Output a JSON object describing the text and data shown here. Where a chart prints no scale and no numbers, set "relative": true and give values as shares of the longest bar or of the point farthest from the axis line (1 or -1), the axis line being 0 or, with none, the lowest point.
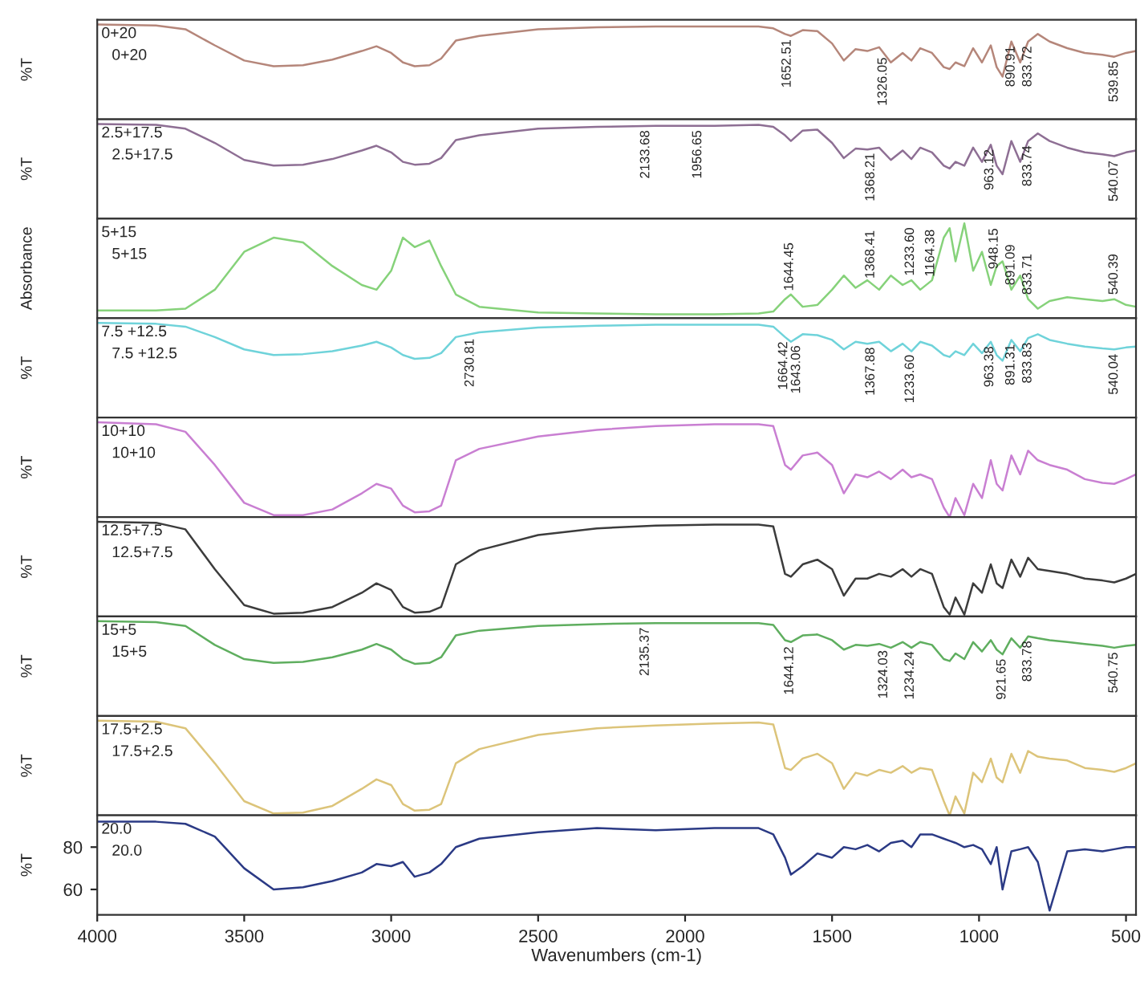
{
  "chart_data": [
    {
      "type": "line",
      "relative": true,
      "tick_labels": false,
      "xlim": [
        4000,
        466
      ],
      "ylabel": "%T",
      "annotations": [
        "0+20",
        "0+20",
        {
          "text": "1652.51",
          "x": 1652.51,
          "y": 0.89
        },
        {
          "text": "1326.05",
          "x": 1326.05,
          "y": 0.7
        },
        {
          "text": "890.91",
          "x": 890.91,
          "y": 0.82
        },
        {
          "text": "833.72",
          "x": 833.72,
          "y": 0.82
        },
        {
          "text": "539.85",
          "x": 539.85,
          "y": 0.66
        }
      ],
      "xticks": [
        4000,
        3500,
        3000,
        2500,
        2000,
        1500,
        1000,
        500
      ],
      "x": [
        4000,
        3800,
        3700,
        3600,
        3500,
        3400,
        3300,
        3200,
        3100,
        3050,
        3000,
        2960,
        2920,
        2870,
        2830,
        2780,
        2700,
        2500,
        2300,
        2100,
        1900,
        1750,
        1700,
        1660,
        1640,
        1600,
        1550,
        1500,
        1460,
        1420,
        1380,
        1340,
        1300,
        1260,
        1230,
        1200,
        1160,
        1120,
        1100,
        1080,
        1050,
        1020,
        990,
        960,
        940,
        920,
        890,
        860,
        833,
        800,
        760,
        700,
        640,
        580,
        540,
        500,
        466
      ],
      "series": [
        {
          "color": "#b5867a",
          "values": [
            1,
            0.99,
            0.95,
            0.78,
            0.62,
            0.56,
            0.57,
            0.63,
            0.72,
            0.77,
            0.7,
            0.6,
            0.56,
            0.57,
            0.64,
            0.83,
            0.88,
            0.95,
            0.97,
            0.98,
            0.98,
            0.98,
            0.96,
            0.9,
            0.88,
            0.94,
            0.93,
            0.8,
            0.62,
            0.74,
            0.72,
            0.76,
            0.6,
            0.7,
            0.62,
            0.75,
            0.7,
            0.55,
            0.53,
            0.6,
            0.56,
            0.75,
            0.6,
            0.78,
            0.55,
            0.45,
            0.82,
            0.6,
            0.82,
            0.9,
            0.82,
            0.75,
            0.7,
            0.68,
            0.66,
            0.7,
            0.72
          ]
        }
      ]
    },
    {
      "type": "line",
      "relative": true,
      "tick_labels": false,
      "xlim": [
        4000,
        466
      ],
      "ylabel": "%T",
      "annotations": [
        "2.5+17.5",
        "2.5+17.5",
        {
          "text": "2133.68",
          "x": 2133.68,
          "y": 0.98
        },
        {
          "text": "1956.65",
          "x": 1956.65,
          "y": 0.98
        },
        {
          "text": "1368.21",
          "x": 1368.21,
          "y": 0.74
        },
        {
          "text": "963.12",
          "x": 963.12,
          "y": 0.78
        },
        {
          "text": "833.74",
          "x": 833.74,
          "y": 0.82
        },
        {
          "text": "540.07",
          "x": 540.07,
          "y": 0.66
        }
      ],
      "xticks": [
        4000,
        3500,
        3000,
        2500,
        2000,
        1500,
        1000,
        500
      ],
      "x": [
        4000,
        3800,
        3700,
        3600,
        3500,
        3400,
        3300,
        3200,
        3100,
        3050,
        3000,
        2960,
        2920,
        2870,
        2830,
        2780,
        2700,
        2500,
        2300,
        2100,
        1900,
        1750,
        1700,
        1660,
        1640,
        1600,
        1550,
        1500,
        1460,
        1420,
        1380,
        1340,
        1300,
        1260,
        1230,
        1200,
        1160,
        1120,
        1100,
        1080,
        1050,
        1020,
        990,
        960,
        940,
        920,
        890,
        860,
        833,
        800,
        760,
        700,
        640,
        580,
        540,
        500,
        466
      ],
      "series": [
        {
          "color": "#8e6f94",
          "values": [
            1,
            0.99,
            0.95,
            0.8,
            0.62,
            0.56,
            0.57,
            0.63,
            0.72,
            0.77,
            0.7,
            0.6,
            0.57,
            0.58,
            0.64,
            0.83,
            0.88,
            0.95,
            0.97,
            0.98,
            0.98,
            0.99,
            0.97,
            0.88,
            0.82,
            0.93,
            0.94,
            0.8,
            0.64,
            0.74,
            0.73,
            0.75,
            0.62,
            0.72,
            0.63,
            0.75,
            0.7,
            0.56,
            0.53,
            0.6,
            0.56,
            0.75,
            0.6,
            0.78,
            0.56,
            0.47,
            0.82,
            0.6,
            0.82,
            0.9,
            0.82,
            0.75,
            0.7,
            0.68,
            0.66,
            0.7,
            0.72
          ]
        }
      ]
    },
    {
      "type": "line",
      "relative": true,
      "tick_labels": false,
      "xlim": [
        4000,
        466
      ],
      "ylabel": "Absorbance",
      "annotations": [
        "5+15",
        "5+15",
        {
          "text": "1644.45",
          "x": 1644.45,
          "y": 0.24
        },
        {
          "text": "1368.41",
          "x": 1368.41,
          "y": 0.37
        },
        {
          "text": "1233.60",
          "x": 1233.6,
          "y": 0.4
        },
        {
          "text": "1164.38",
          "x": 1164.38,
          "y": 0.39
        },
        {
          "text": "948.15",
          "x": 948.15,
          "y": 0.47
        },
        {
          "text": "891.09",
          "x": 891.09,
          "y": 0.3
        },
        {
          "text": "833.71",
          "x": 833.71,
          "y": 0.2
        },
        {
          "text": "540.39",
          "x": 540.39,
          "y": 0.2
        }
      ],
      "xticks": [
        4000,
        3500,
        3000,
        2500,
        2000,
        1500,
        1000,
        500
      ],
      "x": [
        4000,
        3800,
        3700,
        3600,
        3500,
        3400,
        3300,
        3200,
        3100,
        3050,
        3000,
        2960,
        2920,
        2870,
        2830,
        2780,
        2700,
        2500,
        2300,
        2100,
        1900,
        1750,
        1700,
        1660,
        1640,
        1600,
        1550,
        1500,
        1460,
        1420,
        1380,
        1340,
        1300,
        1260,
        1230,
        1200,
        1160,
        1120,
        1100,
        1080,
        1050,
        1020,
        990,
        960,
        940,
        920,
        890,
        860,
        833,
        800,
        760,
        700,
        640,
        580,
        540,
        500,
        466
      ],
      "series": [
        {
          "color": "#86d27a",
          "values": [
            0.08,
            0.08,
            0.1,
            0.3,
            0.7,
            0.85,
            0.8,
            0.55,
            0.35,
            0.3,
            0.5,
            0.85,
            0.75,
            0.82,
            0.55,
            0.25,
            0.12,
            0.06,
            0.05,
            0.04,
            0.04,
            0.05,
            0.07,
            0.2,
            0.25,
            0.12,
            0.14,
            0.3,
            0.45,
            0.32,
            0.4,
            0.3,
            0.45,
            0.35,
            0.4,
            0.3,
            0.4,
            0.85,
            0.95,
            0.6,
            1,
            0.5,
            0.7,
            0.35,
            0.55,
            0.6,
            0.3,
            0.45,
            0.2,
            0.1,
            0.18,
            0.22,
            0.2,
            0.18,
            0.2,
            0.14,
            0.12
          ]
        }
      ]
    },
    {
      "type": "line",
      "relative": true,
      "tick_labels": false,
      "xlim": [
        4000,
        466
      ],
      "ylabel": "%T",
      "annotations": [
        "7.5 +12.5",
        "7.5 +12.5",
        {
          "text": "2730.81",
          "x": 2730.81,
          "y": 0.88
        },
        {
          "text": "1664.42",
          "x": 1664.42,
          "y": 0.85
        },
        {
          "text": "1643.06",
          "x": 1643.06,
          "y": 0.81
        },
        {
          "text": "1367.88",
          "x": 1367.88,
          "y": 0.79
        },
        {
          "text": "1233.60",
          "x": 1233.6,
          "y": 0.71
        },
        {
          "text": "963.38",
          "x": 963.38,
          "y": 0.8
        },
        {
          "text": "891.31",
          "x": 891.31,
          "y": 0.82
        },
        {
          "text": "833.83",
          "x": 833.83,
          "y": 0.84
        },
        {
          "text": "540.04",
          "x": 540.04,
          "y": 0.72
        }
      ],
      "xticks": [
        4000,
        3500,
        3000,
        2500,
        2000,
        1500,
        1000,
        500
      ],
      "x": [
        4000,
        3800,
        3700,
        3600,
        3500,
        3400,
        3300,
        3200,
        3100,
        3050,
        3000,
        2960,
        2920,
        2870,
        2830,
        2780,
        2700,
        2500,
        2300,
        2100,
        1900,
        1750,
        1700,
        1660,
        1640,
        1600,
        1550,
        1500,
        1460,
        1420,
        1380,
        1340,
        1300,
        1260,
        1230,
        1200,
        1160,
        1120,
        1100,
        1080,
        1050,
        1020,
        990,
        960,
        940,
        920,
        890,
        860,
        833,
        800,
        760,
        700,
        640,
        580,
        540,
        500,
        466
      ],
      "series": [
        {
          "color": "#6fd3da",
          "values": [
            1,
            0.99,
            0.96,
            0.85,
            0.72,
            0.66,
            0.67,
            0.7,
            0.76,
            0.8,
            0.74,
            0.66,
            0.62,
            0.63,
            0.68,
            0.85,
            0.9,
            0.95,
            0.97,
            0.98,
            0.98,
            0.98,
            0.96,
            0.85,
            0.8,
            0.88,
            0.87,
            0.82,
            0.72,
            0.8,
            0.78,
            0.8,
            0.7,
            0.78,
            0.7,
            0.8,
            0.76,
            0.66,
            0.64,
            0.7,
            0.66,
            0.78,
            0.68,
            0.8,
            0.66,
            0.6,
            0.82,
            0.7,
            0.84,
            0.88,
            0.82,
            0.78,
            0.75,
            0.73,
            0.72,
            0.74,
            0.75
          ]
        }
      ]
    },
    {
      "type": "line",
      "relative": true,
      "tick_labels": false,
      "xlim": [
        4000,
        466
      ],
      "ylabel": "%T",
      "annotations": [
        "10+10",
        "10+10"
      ],
      "xticks": [
        4000,
        3500,
        3000,
        2500,
        2000,
        1500,
        1000,
        500
      ],
      "x": [
        4000,
        3800,
        3700,
        3600,
        3500,
        3400,
        3300,
        3200,
        3100,
        3050,
        3000,
        2960,
        2920,
        2870,
        2830,
        2780,
        2700,
        2500,
        2300,
        2100,
        1900,
        1750,
        1700,
        1660,
        1640,
        1600,
        1550,
        1500,
        1460,
        1420,
        1380,
        1340,
        1300,
        1260,
        1230,
        1200,
        1160,
        1120,
        1100,
        1080,
        1050,
        1020,
        990,
        960,
        940,
        920,
        890,
        860,
        833,
        800,
        760,
        700,
        640,
        580,
        540,
        500,
        466
      ],
      "series": [
        {
          "color": "#c97fd2",
          "values": [
            1,
            0.98,
            0.9,
            0.55,
            0.15,
            0.02,
            0.02,
            0.08,
            0.25,
            0.35,
            0.3,
            0.12,
            0.05,
            0.06,
            0.12,
            0.6,
            0.72,
            0.85,
            0.92,
            0.96,
            0.98,
            0.98,
            0.96,
            0.55,
            0.5,
            0.65,
            0.68,
            0.55,
            0.25,
            0.45,
            0.42,
            0.48,
            0.4,
            0.5,
            0.42,
            0.45,
            0.4,
            0.1,
            0,
            0.2,
            0.02,
            0.35,
            0.2,
            0.6,
            0.35,
            0.28,
            0.65,
            0.45,
            0.7,
            0.6,
            0.55,
            0.5,
            0.4,
            0.36,
            0.35,
            0.4,
            0.45
          ]
        }
      ]
    },
    {
      "type": "line",
      "relative": true,
      "tick_labels": false,
      "xlim": [
        4000,
        466
      ],
      "ylabel": "%T",
      "annotations": [
        "12.5+7.5",
        "12.5+7.5"
      ],
      "xticks": [
        4000,
        3500,
        3000,
        2500,
        2000,
        1500,
        1000,
        500
      ],
      "x": [
        4000,
        3800,
        3700,
        3600,
        3500,
        3400,
        3300,
        3200,
        3100,
        3050,
        3000,
        2960,
        2920,
        2870,
        2830,
        2780,
        2700,
        2500,
        2300,
        2100,
        1900,
        1750,
        1700,
        1660,
        1640,
        1600,
        1550,
        1500,
        1460,
        1420,
        1380,
        1340,
        1300,
        1260,
        1230,
        1200,
        1160,
        1120,
        1100,
        1080,
        1050,
        1020,
        990,
        960,
        940,
        920,
        890,
        860,
        833,
        800,
        760,
        700,
        640,
        580,
        540,
        500,
        466
      ],
      "series": [
        {
          "color": "#3c3c3c",
          "values": [
            1,
            0.99,
            0.92,
            0.5,
            0.12,
            0.03,
            0.04,
            0.1,
            0.25,
            0.35,
            0.28,
            0.1,
            0.04,
            0.05,
            0.1,
            0.55,
            0.7,
            0.86,
            0.93,
            0.96,
            0.97,
            0.97,
            0.95,
            0.45,
            0.42,
            0.55,
            0.6,
            0.5,
            0.22,
            0.4,
            0.4,
            0.45,
            0.42,
            0.5,
            0.42,
            0.5,
            0.45,
            0.1,
            0.02,
            0.2,
            0.02,
            0.35,
            0.25,
            0.55,
            0.35,
            0.3,
            0.6,
            0.42,
            0.62,
            0.5,
            0.48,
            0.45,
            0.4,
            0.38,
            0.36,
            0.4,
            0.45
          ]
        }
      ]
    },
    {
      "type": "line",
      "relative": true,
      "tick_labels": false,
      "xlim": [
        4000,
        466
      ],
      "ylabel": "%T",
      "annotations": [
        "15+5",
        "15+5",
        {
          "text": "2135.37",
          "x": 2135.37,
          "y": 0.98
        },
        {
          "text": "1644.12",
          "x": 1644.12,
          "y": 0.78
        },
        {
          "text": "1234.24",
          "x": 1234.24,
          "y": 0.73
        },
        {
          "text": "1324.03",
          "x": 1324.03,
          "y": 0.74
        },
        {
          "text": "921.65",
          "x": 921.65,
          "y": 0.65
        },
        {
          "text": "833.78",
          "x": 833.78,
          "y": 0.84
        },
        {
          "text": "540.75",
          "x": 540.75,
          "y": 0.72
        }
      ],
      "xticks": [
        4000,
        3500,
        3000,
        2500,
        2000,
        1500,
        1000,
        500
      ],
      "x": [
        4000,
        3800,
        3700,
        3600,
        3500,
        3400,
        3300,
        3200,
        3100,
        3050,
        3000,
        2960,
        2920,
        2870,
        2830,
        2780,
        2700,
        2500,
        2300,
        2100,
        1900,
        1750,
        1700,
        1660,
        1640,
        1600,
        1550,
        1500,
        1460,
        1420,
        1380,
        1340,
        1300,
        1260,
        1230,
        1200,
        1160,
        1120,
        1100,
        1080,
        1050,
        1020,
        990,
        960,
        940,
        920,
        890,
        860,
        833,
        800,
        760,
        700,
        640,
        580,
        540,
        500,
        466
      ],
      "series": [
        {
          "color": "#5fae5f",
          "values": [
            1,
            0.99,
            0.95,
            0.75,
            0.6,
            0.56,
            0.57,
            0.62,
            0.7,
            0.76,
            0.7,
            0.6,
            0.55,
            0.56,
            0.62,
            0.85,
            0.9,
            0.95,
            0.97,
            0.98,
            0.98,
            0.98,
            0.96,
            0.8,
            0.78,
            0.85,
            0.86,
            0.8,
            0.7,
            0.75,
            0.74,
            0.76,
            0.72,
            0.78,
            0.72,
            0.78,
            0.75,
            0.6,
            0.58,
            0.66,
            0.6,
            0.78,
            0.68,
            0.8,
            0.7,
            0.65,
            0.82,
            0.72,
            0.84,
            0.82,
            0.8,
            0.78,
            0.76,
            0.74,
            0.72,
            0.74,
            0.75
          ]
        }
      ]
    },
    {
      "type": "line",
      "relative": true,
      "tick_labels": false,
      "xlim": [
        4000,
        466
      ],
      "ylabel": "%T",
      "annotations": [
        "17.5+2.5",
        "17.5+2.5"
      ],
      "xticks": [
        4000,
        3500,
        3000,
        2500,
        2000,
        1500,
        1000,
        500
      ],
      "x": [
        4000,
        3800,
        3700,
        3600,
        3500,
        3400,
        3300,
        3200,
        3100,
        3050,
        3000,
        2960,
        2920,
        2870,
        2830,
        2780,
        2700,
        2500,
        2300,
        2100,
        1900,
        1750,
        1700,
        1660,
        1640,
        1600,
        1550,
        1500,
        1460,
        1420,
        1380,
        1340,
        1300,
        1260,
        1230,
        1200,
        1160,
        1120,
        1100,
        1080,
        1050,
        1020,
        990,
        960,
        940,
        920,
        890,
        860,
        833,
        800,
        760,
        700,
        640,
        580,
        540,
        500,
        466
      ],
      "series": [
        {
          "color": "#dcc47a",
          "values": [
            1,
            0.99,
            0.92,
            0.55,
            0.15,
            0.02,
            0.03,
            0.1,
            0.28,
            0.38,
            0.32,
            0.12,
            0.05,
            0.06,
            0.12,
            0.55,
            0.7,
            0.85,
            0.92,
            0.95,
            0.97,
            0.98,
            0.96,
            0.5,
            0.48,
            0.6,
            0.65,
            0.55,
            0.28,
            0.45,
            0.42,
            0.48,
            0.45,
            0.52,
            0.45,
            0.5,
            0.48,
            0.15,
            0,
            0.2,
            0.02,
            0.45,
            0.35,
            0.6,
            0.4,
            0.35,
            0.65,
            0.45,
            0.68,
            0.62,
            0.6,
            0.58,
            0.5,
            0.48,
            0.46,
            0.5,
            0.55
          ]
        }
      ]
    },
    {
      "type": "line",
      "xlim": [
        4000,
        466
      ],
      "ylim": [
        48,
        95
      ],
      "xticks": [
        4000,
        3500,
        3000,
        2500,
        2000,
        1500,
        1000,
        500
      ],
      "yticks": [
        80,
        60
      ],
      "xlabel": "Wavenumbers (cm-1)",
      "ylabel": "%T",
      "annotations": [
        "20.0",
        "20.0"
      ],
      "x": [
        4000,
        3800,
        3700,
        3600,
        3500,
        3400,
        3300,
        3200,
        3100,
        3050,
        3000,
        2960,
        2920,
        2870,
        2830,
        2780,
        2700,
        2500,
        2300,
        2100,
        1900,
        1750,
        1700,
        1660,
        1640,
        1600,
        1550,
        1500,
        1460,
        1420,
        1380,
        1340,
        1300,
        1260,
        1230,
        1200,
        1160,
        1120,
        1100,
        1080,
        1050,
        1020,
        990,
        960,
        940,
        920,
        890,
        860,
        833,
        800,
        760,
        700,
        640,
        580,
        540,
        500,
        466
      ],
      "series": [
        {
          "color": "#2b3a85",
          "values": [
            92,
            92,
            91,
            85,
            70,
            60,
            61,
            64,
            68,
            72,
            71,
            73,
            66,
            68,
            72,
            80,
            84,
            87,
            89,
            88,
            89,
            89,
            86,
            75,
            67,
            71,
            77,
            75,
            80,
            79,
            81,
            78,
            82,
            83,
            80,
            86,
            86,
            84,
            83,
            82,
            80,
            81,
            79,
            72,
            80,
            60,
            78,
            79,
            80,
            73,
            50,
            78,
            79,
            78,
            79,
            80,
            80
          ]
        }
      ]
    }
  ]
}
